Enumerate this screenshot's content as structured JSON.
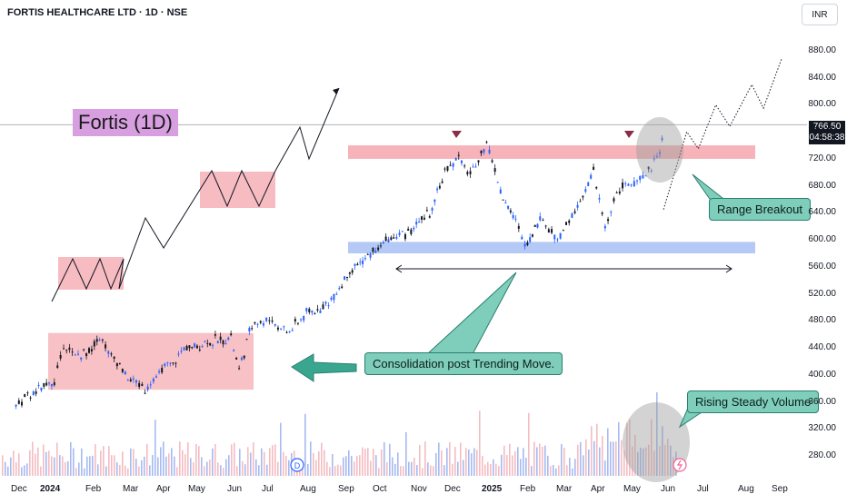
{
  "header": {
    "title": "FORTIS HEALTHCARE LTD · 1D · NSE",
    "currency": "INR"
  },
  "price_tag": {
    "price": "766.50",
    "countdown": "04:58:38"
  },
  "annotations": {
    "name_label": "Fortis (1D)",
    "range_breakout": "Range Breakout",
    "consolidation": "Consolidation post Trending Move.",
    "rising_volume": "Rising Steady Volume",
    "dividend_marker": "D"
  },
  "colors": {
    "up": "#2962ff",
    "down": "#131722",
    "resistance_zone": "#f4a6ad",
    "support_zone": "#a8c0f4",
    "callout": "#7fcdbb",
    "label_bg": "#d79fe0"
  },
  "chart_data": {
    "type": "candlestick",
    "title": "FORTIS HEALTHCARE LTD · 1D · NSE",
    "currency": "INR",
    "x_ticks": [
      "Dec",
      "2024",
      "Feb",
      "Mar",
      "Apr",
      "May",
      "Jun",
      "Jul",
      "Aug",
      "Sep",
      "Oct",
      "Nov",
      "Dec",
      "2025",
      "Feb",
      "Mar",
      "Apr",
      "May",
      "Jun",
      "Jul",
      "Aug",
      "Sep"
    ],
    "y_ticks": [
      "880.00",
      "840.00",
      "800.00",
      "760.00",
      "720.00",
      "680.00",
      "640.00",
      "600.00",
      "560.00",
      "520.00",
      "480.00",
      "440.00",
      "400.00",
      "360.00",
      "320.00",
      "280.00"
    ],
    "ylim": [
      250,
      905
    ],
    "last_price": 766.5,
    "price_path": [
      [
        "2023-11-25",
        355
      ],
      [
        "2023-12-10",
        372
      ],
      [
        "2023-12-28",
        392
      ],
      [
        "2024-01-05",
        440
      ],
      [
        "2024-01-20",
        428
      ],
      [
        "2024-02-05",
        452
      ],
      [
        "2024-02-20",
        420
      ],
      [
        "2024-03-05",
        388
      ],
      [
        "2024-03-15",
        380
      ],
      [
        "2024-04-01",
        410
      ],
      [
        "2024-04-20",
        438
      ],
      [
        "2024-05-10",
        450
      ],
      [
        "2024-05-28",
        455
      ],
      [
        "2024-06-04",
        405
      ],
      [
        "2024-06-15",
        475
      ],
      [
        "2024-06-30",
        482
      ],
      [
        "2024-07-15",
        462
      ],
      [
        "2024-08-01",
        490
      ],
      [
        "2024-08-20",
        505
      ],
      [
        "2024-09-05",
        545
      ],
      [
        "2024-09-25",
        580
      ],
      [
        "2024-10-15",
        605
      ],
      [
        "2024-10-30",
        612
      ],
      [
        "2024-11-15",
        640
      ],
      [
        "2024-11-28",
        700
      ],
      [
        "2024-12-10",
        725
      ],
      [
        "2024-12-20",
        695
      ],
      [
        "2025-01-03",
        745
      ],
      [
        "2025-01-15",
        672
      ],
      [
        "2025-01-28",
        628
      ],
      [
        "2025-02-05",
        590
      ],
      [
        "2025-02-18",
        632
      ],
      [
        "2025-03-05",
        600
      ],
      [
        "2025-03-20",
        640
      ],
      [
        "2025-04-05",
        700
      ],
      [
        "2025-04-15",
        615
      ],
      [
        "2025-04-25",
        672
      ],
      [
        "2025-05-10",
        688
      ],
      [
        "2025-05-20",
        692
      ],
      [
        "2025-06-01",
        735
      ],
      [
        "2025-06-05",
        766.5
      ]
    ],
    "resistance_zone": [
      720,
      740
    ],
    "support_zone": [
      580,
      597
    ],
    "consolidation_zone": [
      378,
      462
    ],
    "projected_path": [
      [
        "2025-06-05",
        645
      ],
      [
        "2025-06-25",
        760
      ],
      [
        "2025-07-05",
        735
      ],
      [
        "2025-07-20",
        800
      ],
      [
        "2025-08-01",
        768
      ],
      [
        "2025-08-20",
        830
      ],
      [
        "2025-08-30",
        795
      ],
      [
        "2025-09-15",
        870
      ]
    ],
    "volume": {
      "description": "daily volume bars",
      "up_color": "#2962ff",
      "down_color": "#f4a6ad"
    }
  }
}
